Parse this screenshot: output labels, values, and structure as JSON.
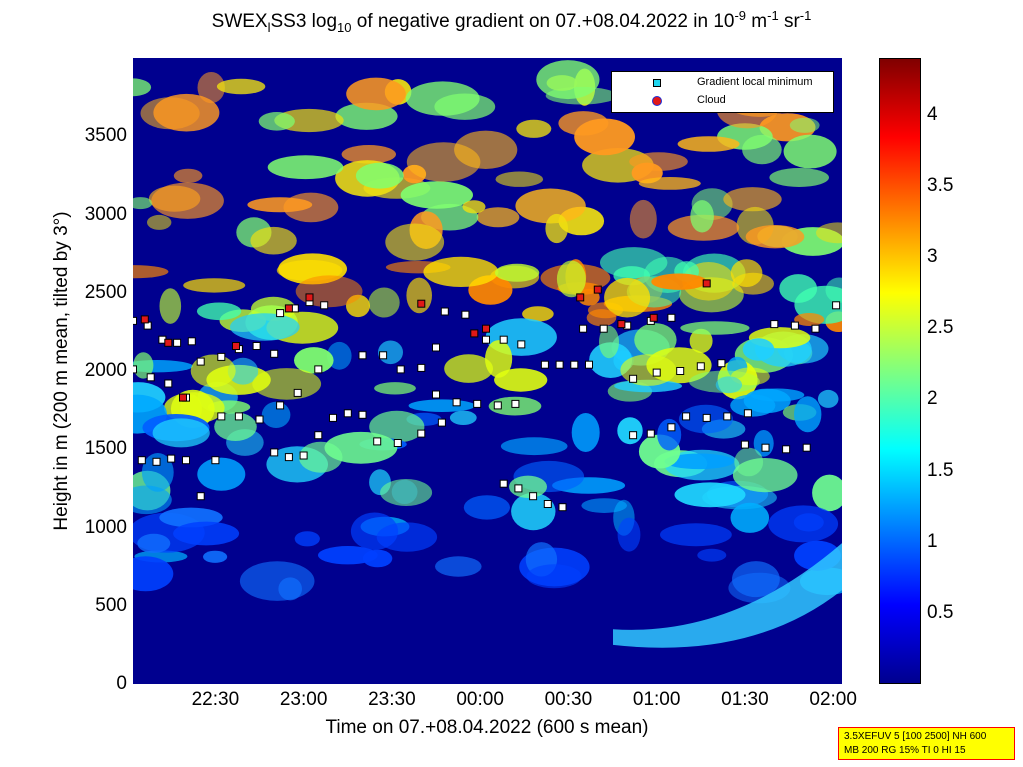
{
  "title": {
    "prefix": "SWEX",
    "sub1": "l",
    "mid": "SS3 log",
    "sub2": "10",
    "rest": " of negative gradient on 07.+08.04.2022 in 10",
    "sup1": "-9",
    "m": " m",
    "sup2": "-1",
    "sr": " sr",
    "sup3": "-1"
  },
  "xlabel": "Time on 07.+08.04.2022 (600 s mean)",
  "ylabel": "Height in m (200 m mean, tilted by 3°)",
  "legend": {
    "marker1": "Gradient local minimum",
    "marker2": "Cloud"
  },
  "infobox": {
    "line1": "3.5XEFUV 5 [100 2500] NH 600",
    "line2": "MB 200 RG 15% TI 0 HI 15"
  },
  "colors": {
    "background": "#00008f",
    "marker_fill": "#ffffff",
    "cloud_fill": "#e01818"
  },
  "chart_data": {
    "type": "heatmap",
    "colormap": "jet",
    "x_ticks": [
      "22:30",
      "23:00",
      "23:30",
      "00:00",
      "00:30",
      "01:00",
      "01:30",
      "02:00"
    ],
    "x_range": [
      "22:02",
      "02:03"
    ],
    "y_ticks": [
      0,
      500,
      1000,
      1500,
      2000,
      2500,
      3000,
      3500
    ],
    "y_range": [
      0,
      4000
    ],
    "colorbar_ticks": [
      0.5,
      1,
      1.5,
      2,
      2.5,
      3,
      3.5,
      4
    ],
    "colorbar_range": [
      0,
      4.4
    ],
    "legend_position": "top-right",
    "gradient_minimum_layers": [
      {
        "x": [
          "22:02",
          "22:07",
          "22:12",
          "22:17",
          "22:22"
        ],
        "y": [
          2320,
          2290,
          2200,
          2180,
          2190
        ]
      },
      {
        "x": [
          "22:02",
          "22:08",
          "22:14",
          "22:20",
          "22:25",
          "22:32",
          "22:38",
          "22:44",
          "22:50"
        ],
        "y": [
          2010,
          1960,
          1920,
          1830,
          2060,
          2090,
          2140,
          2160,
          2110
        ]
      },
      {
        "x": [
          "22:05",
          "22:10",
          "22:15",
          "22:20",
          "22:25",
          "22:30"
        ],
        "y": [
          1430,
          1420,
          1440,
          1430,
          1200,
          1430
        ]
      },
      {
        "x": [
          "22:32",
          "22:38",
          "22:45",
          "22:52",
          "22:58",
          "23:05"
        ],
        "y": [
          1710,
          1710,
          1690,
          1780,
          1860,
          2010
        ]
      },
      {
        "x": [
          "22:50",
          "22:55",
          "23:00",
          "23:05",
          "23:10",
          "23:15",
          "23:20"
        ],
        "y": [
          1480,
          1450,
          1460,
          1590,
          1700,
          1730,
          1720
        ]
      },
      {
        "x": [
          "22:52",
          "22:57",
          "23:02",
          "23:07"
        ],
        "y": [
          2370,
          2400,
          2440,
          2420
        ]
      },
      {
        "x": [
          "23:20",
          "23:27",
          "23:33",
          "23:40",
          "23:45"
        ],
        "y": [
          2100,
          2100,
          2010,
          2020,
          2150
        ]
      },
      {
        "x": [
          "23:25",
          "23:32",
          "23:40",
          "23:47"
        ],
        "y": [
          1550,
          1540,
          1600,
          1670
        ]
      },
      {
        "x": [
          "23:45",
          "23:52",
          "23:59",
          "00:06",
          "00:12"
        ],
        "y": [
          1850,
          1800,
          1790,
          1780,
          1790
        ]
      },
      {
        "x": [
          "23:48",
          "23:55",
          "00:02",
          "00:08",
          "00:14"
        ],
        "y": [
          2380,
          2360,
          2200,
          2200,
          2170
        ]
      },
      {
        "x": [
          "00:08",
          "00:13",
          "00:18",
          "00:23",
          "00:28"
        ],
        "y": [
          1280,
          1250,
          1200,
          1150,
          1130
        ]
      },
      {
        "x": [
          "00:22",
          "00:27",
          "00:32",
          "00:37"
        ],
        "y": [
          2040,
          2040,
          2040,
          2040
        ]
      },
      {
        "x": [
          "00:35",
          "00:42",
          "00:50",
          "00:58",
          "01:05"
        ],
        "y": [
          2270,
          2270,
          2290,
          2320,
          2340
        ]
      },
      {
        "x": [
          "00:52",
          "01:00",
          "01:08",
          "01:15",
          "01:22"
        ],
        "y": [
          1950,
          1990,
          2000,
          2030,
          2050
        ]
      },
      {
        "x": [
          "00:52",
          "00:58",
          "01:05"
        ],
        "y": [
          1590,
          1600,
          1640
        ]
      },
      {
        "x": [
          "01:10",
          "01:17",
          "01:24",
          "01:31"
        ],
        "y": [
          1710,
          1700,
          1710,
          1730
        ]
      },
      {
        "x": [
          "01:30",
          "01:37",
          "01:44",
          "01:51"
        ],
        "y": [
          1530,
          1510,
          1500,
          1510
        ]
      },
      {
        "x": [
          "01:40",
          "01:47",
          "01:54",
          "02:01"
        ],
        "y": [
          2300,
          2290,
          2270,
          2420
        ]
      }
    ],
    "cloud_points": [
      {
        "x": "22:06",
        "y": 2330
      },
      {
        "x": "22:14",
        "y": 2180
      },
      {
        "x": "22:19",
        "y": 1830
      },
      {
        "x": "22:37",
        "y": 2160
      },
      {
        "x": "22:55",
        "y": 2400
      },
      {
        "x": "23:02",
        "y": 2470
      },
      {
        "x": "23:40",
        "y": 2430
      },
      {
        "x": "23:58",
        "y": 2240
      },
      {
        "x": "00:02",
        "y": 2270
      },
      {
        "x": "00:34",
        "y": 2470
      },
      {
        "x": "00:40",
        "y": 2520
      },
      {
        "x": "01:17",
        "y": 2560
      },
      {
        "x": "00:59",
        "y": 2340
      },
      {
        "x": "00:48",
        "y": 2300
      }
    ]
  }
}
